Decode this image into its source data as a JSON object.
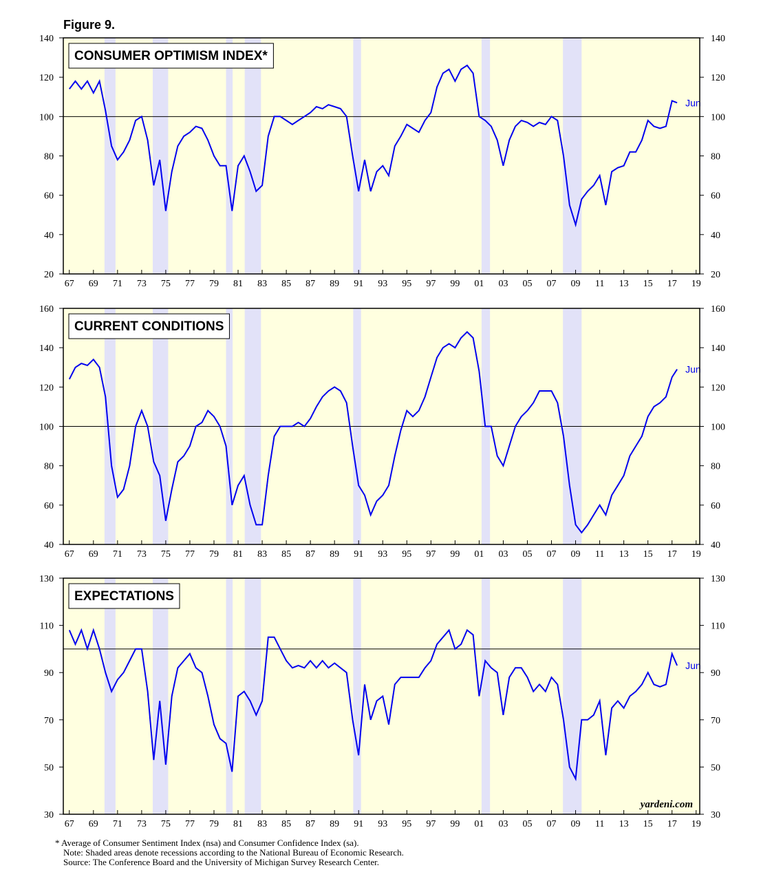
{
  "figure_title": "Figure 9.",
  "notes": [
    "* Average of Consumer Sentiment Index (nsa) and Consumer Confidence Index (sa).",
    "Note: Shaded areas denote recessions according to the National Bureau of Economic Research.",
    "Source: The Conference Board and the University of Michigan Survey Research Center."
  ],
  "chart_data": [
    {
      "type": "line",
      "title": "CONSUMER OPTIMISM INDEX*",
      "last_label": "Jun",
      "background": "#ffffe0",
      "recession_color": "#e2e2f8",
      "reference_line": 100,
      "xlim": [
        1966.5,
        2019.3
      ],
      "ylim": [
        20,
        140
      ],
      "yticks": [
        20,
        40,
        60,
        80,
        100,
        120,
        140
      ],
      "xticks": [
        {
          "value": 1967,
          "label": "67"
        },
        {
          "value": 1969,
          "label": "69"
        },
        {
          "value": 1971,
          "label": "71"
        },
        {
          "value": 1973,
          "label": "73"
        },
        {
          "value": 1975,
          "label": "75"
        },
        {
          "value": 1977,
          "label": "77"
        },
        {
          "value": 1979,
          "label": "79"
        },
        {
          "value": 1981,
          "label": "81"
        },
        {
          "value": 1983,
          "label": "83"
        },
        {
          "value": 1985,
          "label": "85"
        },
        {
          "value": 1987,
          "label": "87"
        },
        {
          "value": 1989,
          "label": "89"
        },
        {
          "value": 1991,
          "label": "91"
        },
        {
          "value": 1993,
          "label": "93"
        },
        {
          "value": 1995,
          "label": "95"
        },
        {
          "value": 1997,
          "label": "97"
        },
        {
          "value": 1999,
          "label": "99"
        },
        {
          "value": 2001,
          "label": "01"
        },
        {
          "value": 2003,
          "label": "03"
        },
        {
          "value": 2005,
          "label": "05"
        },
        {
          "value": 2007,
          "label": "07"
        },
        {
          "value": 2009,
          "label": "09"
        },
        {
          "value": 2011,
          "label": "11"
        },
        {
          "value": 2013,
          "label": "13"
        },
        {
          "value": 2015,
          "label": "15"
        },
        {
          "value": 2017,
          "label": "17"
        },
        {
          "value": 2019,
          "label": "19"
        }
      ],
      "recessions": [
        [
          1969.92,
          1970.83
        ],
        [
          1973.92,
          1975.2
        ],
        [
          1980.0,
          1980.55
        ],
        [
          1981.55,
          1982.9
        ],
        [
          1990.55,
          1991.2
        ],
        [
          2001.2,
          2001.9
        ],
        [
          2007.95,
          2009.5
        ]
      ],
      "x": [
        1967,
        1967.5,
        1968,
        1968.5,
        1969,
        1969.5,
        1970,
        1970.5,
        1971,
        1971.5,
        1972,
        1972.5,
        1973,
        1973.5,
        1974,
        1974.5,
        1975,
        1975.5,
        1976,
        1976.5,
        1977,
        1977.5,
        1978,
        1978.5,
        1979,
        1979.5,
        1980,
        1980.5,
        1981,
        1981.5,
        1982,
        1982.5,
        1983,
        1983.5,
        1984,
        1984.5,
        1985,
        1985.5,
        1986,
        1986.5,
        1987,
        1987.5,
        1988,
        1988.5,
        1989,
        1989.5,
        1990,
        1990.5,
        1991,
        1991.5,
        1992,
        1992.5,
        1993,
        1993.5,
        1994,
        1994.5,
        1995,
        1995.5,
        1996,
        1996.5,
        1997,
        1997.5,
        1998,
        1998.5,
        1999,
        1999.5,
        2000,
        2000.5,
        2001,
        2001.5,
        2002,
        2002.5,
        2003,
        2003.5,
        2004,
        2004.5,
        2005,
        2005.5,
        2006,
        2006.5,
        2007,
        2007.5,
        2008,
        2008.5,
        2009,
        2009.5,
        2010,
        2010.5,
        2011,
        2011.5,
        2012,
        2012.5,
        2013,
        2013.5,
        2014,
        2014.5,
        2015,
        2015.5,
        2016,
        2016.5,
        2017,
        2017.42
      ],
      "series": [
        {
          "color": "#0000ee",
          "values": [
            114,
            118,
            114,
            118,
            112,
            118,
            103,
            85,
            78,
            82,
            88,
            98,
            100,
            88,
            65,
            78,
            52,
            72,
            85,
            90,
            92,
            95,
            94,
            88,
            80,
            75,
            75,
            52,
            75,
            80,
            72,
            62,
            65,
            90,
            100,
            100,
            98,
            96,
            98,
            100,
            102,
            105,
            104,
            106,
            105,
            104,
            100,
            80,
            62,
            78,
            62,
            72,
            75,
            70,
            85,
            90,
            96,
            94,
            92,
            98,
            102,
            115,
            122,
            124,
            118,
            124,
            126,
            122,
            100,
            98,
            95,
            88,
            75,
            88,
            95,
            98,
            97,
            95,
            97,
            96,
            100,
            98,
            80,
            55,
            45,
            58,
            62,
            65,
            70,
            55,
            72,
            74,
            75,
            82,
            82,
            88,
            98,
            95,
            94,
            95,
            108,
            107
          ]
        }
      ]
    },
    {
      "type": "line",
      "title": "CURRENT CONDITIONS",
      "last_label": "Jun",
      "background": "#ffffe0",
      "recession_color": "#e2e2f8",
      "reference_line": 100,
      "xlim": [
        1966.5,
        2019.3
      ],
      "ylim": [
        40,
        160
      ],
      "yticks": [
        40,
        60,
        80,
        100,
        120,
        140,
        160
      ],
      "xticks": [
        {
          "value": 1967,
          "label": "67"
        },
        {
          "value": 1969,
          "label": "69"
        },
        {
          "value": 1971,
          "label": "71"
        },
        {
          "value": 1973,
          "label": "73"
        },
        {
          "value": 1975,
          "label": "75"
        },
        {
          "value": 1977,
          "label": "77"
        },
        {
          "value": 1979,
          "label": "79"
        },
        {
          "value": 1981,
          "label": "81"
        },
        {
          "value": 1983,
          "label": "83"
        },
        {
          "value": 1985,
          "label": "85"
        },
        {
          "value": 1987,
          "label": "87"
        },
        {
          "value": 1989,
          "label": "89"
        },
        {
          "value": 1991,
          "label": "91"
        },
        {
          "value": 1993,
          "label": "93"
        },
        {
          "value": 1995,
          "label": "95"
        },
        {
          "value": 1997,
          "label": "97"
        },
        {
          "value": 1999,
          "label": "99"
        },
        {
          "value": 2001,
          "label": "01"
        },
        {
          "value": 2003,
          "label": "03"
        },
        {
          "value": 2005,
          "label": "05"
        },
        {
          "value": 2007,
          "label": "07"
        },
        {
          "value": 2009,
          "label": "09"
        },
        {
          "value": 2011,
          "label": "11"
        },
        {
          "value": 2013,
          "label": "13"
        },
        {
          "value": 2015,
          "label": "15"
        },
        {
          "value": 2017,
          "label": "17"
        },
        {
          "value": 2019,
          "label": "19"
        }
      ],
      "recessions": [
        [
          1969.92,
          1970.83
        ],
        [
          1973.92,
          1975.2
        ],
        [
          1980.0,
          1980.55
        ],
        [
          1981.55,
          1982.9
        ],
        [
          1990.55,
          1991.2
        ],
        [
          2001.2,
          2001.9
        ],
        [
          2007.95,
          2009.5
        ]
      ],
      "x": [
        1967,
        1967.5,
        1968,
        1968.5,
        1969,
        1969.5,
        1970,
        1970.5,
        1971,
        1971.5,
        1972,
        1972.5,
        1973,
        1973.5,
        1974,
        1974.5,
        1975,
        1975.5,
        1976,
        1976.5,
        1977,
        1977.5,
        1978,
        1978.5,
        1979,
        1979.5,
        1980,
        1980.5,
        1981,
        1981.5,
        1982,
        1982.5,
        1983,
        1983.5,
        1984,
        1984.5,
        1985,
        1985.5,
        1986,
        1986.5,
        1987,
        1987.5,
        1988,
        1988.5,
        1989,
        1989.5,
        1990,
        1990.5,
        1991,
        1991.5,
        1992,
        1992.5,
        1993,
        1993.5,
        1994,
        1994.5,
        1995,
        1995.5,
        1996,
        1996.5,
        1997,
        1997.5,
        1998,
        1998.5,
        1999,
        1999.5,
        2000,
        2000.5,
        2001,
        2001.5,
        2002,
        2002.5,
        2003,
        2003.5,
        2004,
        2004.5,
        2005,
        2005.5,
        2006,
        2006.5,
        2007,
        2007.5,
        2008,
        2008.5,
        2009,
        2009.5,
        2010,
        2010.5,
        2011,
        2011.5,
        2012,
        2012.5,
        2013,
        2013.5,
        2014,
        2014.5,
        2015,
        2015.5,
        2016,
        2016.5,
        2017,
        2017.42
      ],
      "series": [
        {
          "color": "#0000ee",
          "values": [
            124,
            130,
            132,
            131,
            134,
            130,
            115,
            80,
            64,
            68,
            80,
            100,
            108,
            100,
            82,
            75,
            52,
            68,
            82,
            85,
            90,
            100,
            102,
            108,
            105,
            100,
            90,
            60,
            70,
            75,
            60,
            50,
            50,
            75,
            95,
            100,
            100,
            100,
            102,
            100,
            104,
            110,
            115,
            118,
            120,
            118,
            112,
            90,
            70,
            65,
            55,
            62,
            65,
            70,
            85,
            98,
            108,
            105,
            108,
            115,
            125,
            135,
            140,
            142,
            140,
            145,
            148,
            145,
            128,
            100,
            100,
            85,
            80,
            90,
            100,
            105,
            108,
            112,
            118,
            118,
            118,
            112,
            95,
            70,
            50,
            46,
            50,
            55,
            60,
            55,
            65,
            70,
            75,
            85,
            90,
            95,
            105,
            110,
            112,
            115,
            125,
            129
          ]
        }
      ]
    },
    {
      "type": "line",
      "title": "EXPECTATIONS",
      "last_label": "Jun",
      "watermark": "yardeni.com",
      "background": "#ffffe0",
      "recession_color": "#e2e2f8",
      "reference_line": 100,
      "xlim": [
        1966.5,
        2019.3
      ],
      "ylim": [
        30,
        130
      ],
      "yticks": [
        30,
        50,
        70,
        90,
        110,
        130
      ],
      "xticks": [
        {
          "value": 1967,
          "label": "67"
        },
        {
          "value": 1969,
          "label": "69"
        },
        {
          "value": 1971,
          "label": "71"
        },
        {
          "value": 1973,
          "label": "73"
        },
        {
          "value": 1975,
          "label": "75"
        },
        {
          "value": 1977,
          "label": "77"
        },
        {
          "value": 1979,
          "label": "79"
        },
        {
          "value": 1981,
          "label": "81"
        },
        {
          "value": 1983,
          "label": "83"
        },
        {
          "value": 1985,
          "label": "85"
        },
        {
          "value": 1987,
          "label": "87"
        },
        {
          "value": 1989,
          "label": "89"
        },
        {
          "value": 1991,
          "label": "91"
        },
        {
          "value": 1993,
          "label": "93"
        },
        {
          "value": 1995,
          "label": "95"
        },
        {
          "value": 1997,
          "label": "97"
        },
        {
          "value": 1999,
          "label": "99"
        },
        {
          "value": 2001,
          "label": "01"
        },
        {
          "value": 2003,
          "label": "03"
        },
        {
          "value": 2005,
          "label": "05"
        },
        {
          "value": 2007,
          "label": "07"
        },
        {
          "value": 2009,
          "label": "09"
        },
        {
          "value": 2011,
          "label": "11"
        },
        {
          "value": 2013,
          "label": "13"
        },
        {
          "value": 2015,
          "label": "15"
        },
        {
          "value": 2017,
          "label": "17"
        },
        {
          "value": 2019,
          "label": "19"
        }
      ],
      "recessions": [
        [
          1969.92,
          1970.83
        ],
        [
          1973.92,
          1975.2
        ],
        [
          1980.0,
          1980.55
        ],
        [
          1981.55,
          1982.9
        ],
        [
          1990.55,
          1991.2
        ],
        [
          2001.2,
          2001.9
        ],
        [
          2007.95,
          2009.5
        ]
      ],
      "x": [
        1967,
        1967.5,
        1968,
        1968.5,
        1969,
        1969.5,
        1970,
        1970.5,
        1971,
        1971.5,
        1972,
        1972.5,
        1973,
        1973.5,
        1974,
        1974.5,
        1975,
        1975.5,
        1976,
        1976.5,
        1977,
        1977.5,
        1978,
        1978.5,
        1979,
        1979.5,
        1980,
        1980.5,
        1981,
        1981.5,
        1982,
        1982.5,
        1983,
        1983.5,
        1984,
        1984.5,
        1985,
        1985.5,
        1986,
        1986.5,
        1987,
        1987.5,
        1988,
        1988.5,
        1989,
        1989.5,
        1990,
        1990.5,
        1991,
        1991.5,
        1992,
        1992.5,
        1993,
        1993.5,
        1994,
        1994.5,
        1995,
        1995.5,
        1996,
        1996.5,
        1997,
        1997.5,
        1998,
        1998.5,
        1999,
        1999.5,
        2000,
        2000.5,
        2001,
        2001.5,
        2002,
        2002.5,
        2003,
        2003.5,
        2004,
        2004.5,
        2005,
        2005.5,
        2006,
        2006.5,
        2007,
        2007.5,
        2008,
        2008.5,
        2009,
        2009.5,
        2010,
        2010.5,
        2011,
        2011.5,
        2012,
        2012.5,
        2013,
        2013.5,
        2014,
        2014.5,
        2015,
        2015.5,
        2016,
        2016.5,
        2017,
        2017.42
      ],
      "series": [
        {
          "color": "#0000ee",
          "values": [
            108,
            102,
            108,
            100,
            108,
            100,
            90,
            82,
            87,
            90,
            95,
            100,
            100,
            82,
            53,
            78,
            51,
            80,
            92,
            95,
            98,
            92,
            90,
            80,
            68,
            62,
            60,
            48,
            80,
            82,
            78,
            72,
            78,
            105,
            105,
            100,
            95,
            92,
            93,
            92,
            95,
            92,
            95,
            92,
            94,
            92,
            90,
            70,
            55,
            85,
            70,
            78,
            80,
            68,
            85,
            88,
            88,
            88,
            88,
            92,
            95,
            102,
            105,
            108,
            100,
            102,
            108,
            106,
            80,
            95,
            92,
            90,
            72,
            88,
            92,
            92,
            88,
            82,
            85,
            82,
            88,
            85,
            70,
            50,
            45,
            70,
            70,
            72,
            78,
            55,
            75,
            78,
            75,
            80,
            82,
            85,
            90,
            85,
            84,
            85,
            98,
            93
          ]
        }
      ]
    }
  ]
}
